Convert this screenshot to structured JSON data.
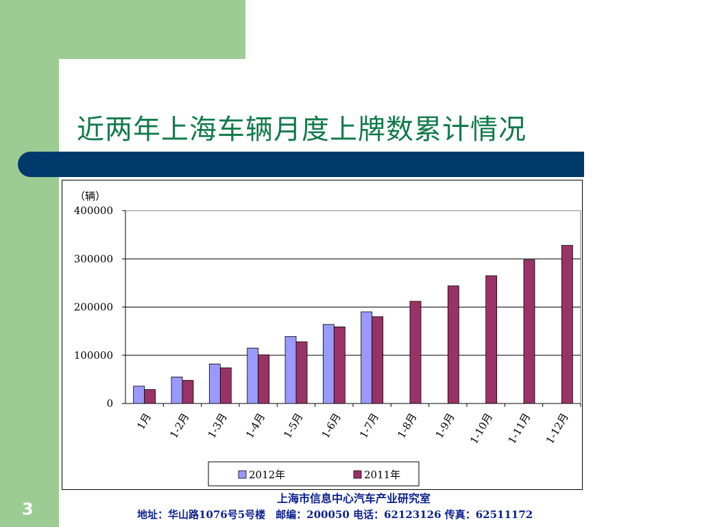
{
  "slide": {
    "title": "近两年上海车辆月度上牌数累计情况",
    "page_number": "3",
    "footer_org": "上海市信息中心汽车产业研究室",
    "footer_address": "地址：华山路1076号5号楼　邮编：200050  电话：62123126  传真：62511172"
  },
  "chart_data": {
    "type": "bar",
    "unit_label": "（辆）",
    "categories": [
      "1月",
      "1-2月",
      "1-3月",
      "1-4月",
      "1-5月",
      "1-6月",
      "1-7月",
      "1-8月",
      "1-9月",
      "1-10月",
      "1-11月",
      "1-12月"
    ],
    "series": [
      {
        "name": "2012年",
        "color": "#9999ff",
        "values": [
          36000,
          55000,
          82000,
          115000,
          139000,
          164000,
          190000,
          null,
          null,
          null,
          null,
          null
        ]
      },
      {
        "name": "2011年",
        "color": "#993366",
        "values": [
          29000,
          48000,
          74000,
          101000,
          128000,
          159000,
          180000,
          212000,
          244000,
          265000,
          298000,
          328000
        ]
      }
    ],
    "ylim": [
      0,
      400000
    ],
    "yticks": [
      0,
      100000,
      200000,
      300000,
      400000
    ],
    "ytick_labels": [
      "0",
      "100000",
      "200000",
      "300000",
      "400000"
    ],
    "grid": true,
    "legend_position": "bottom"
  }
}
